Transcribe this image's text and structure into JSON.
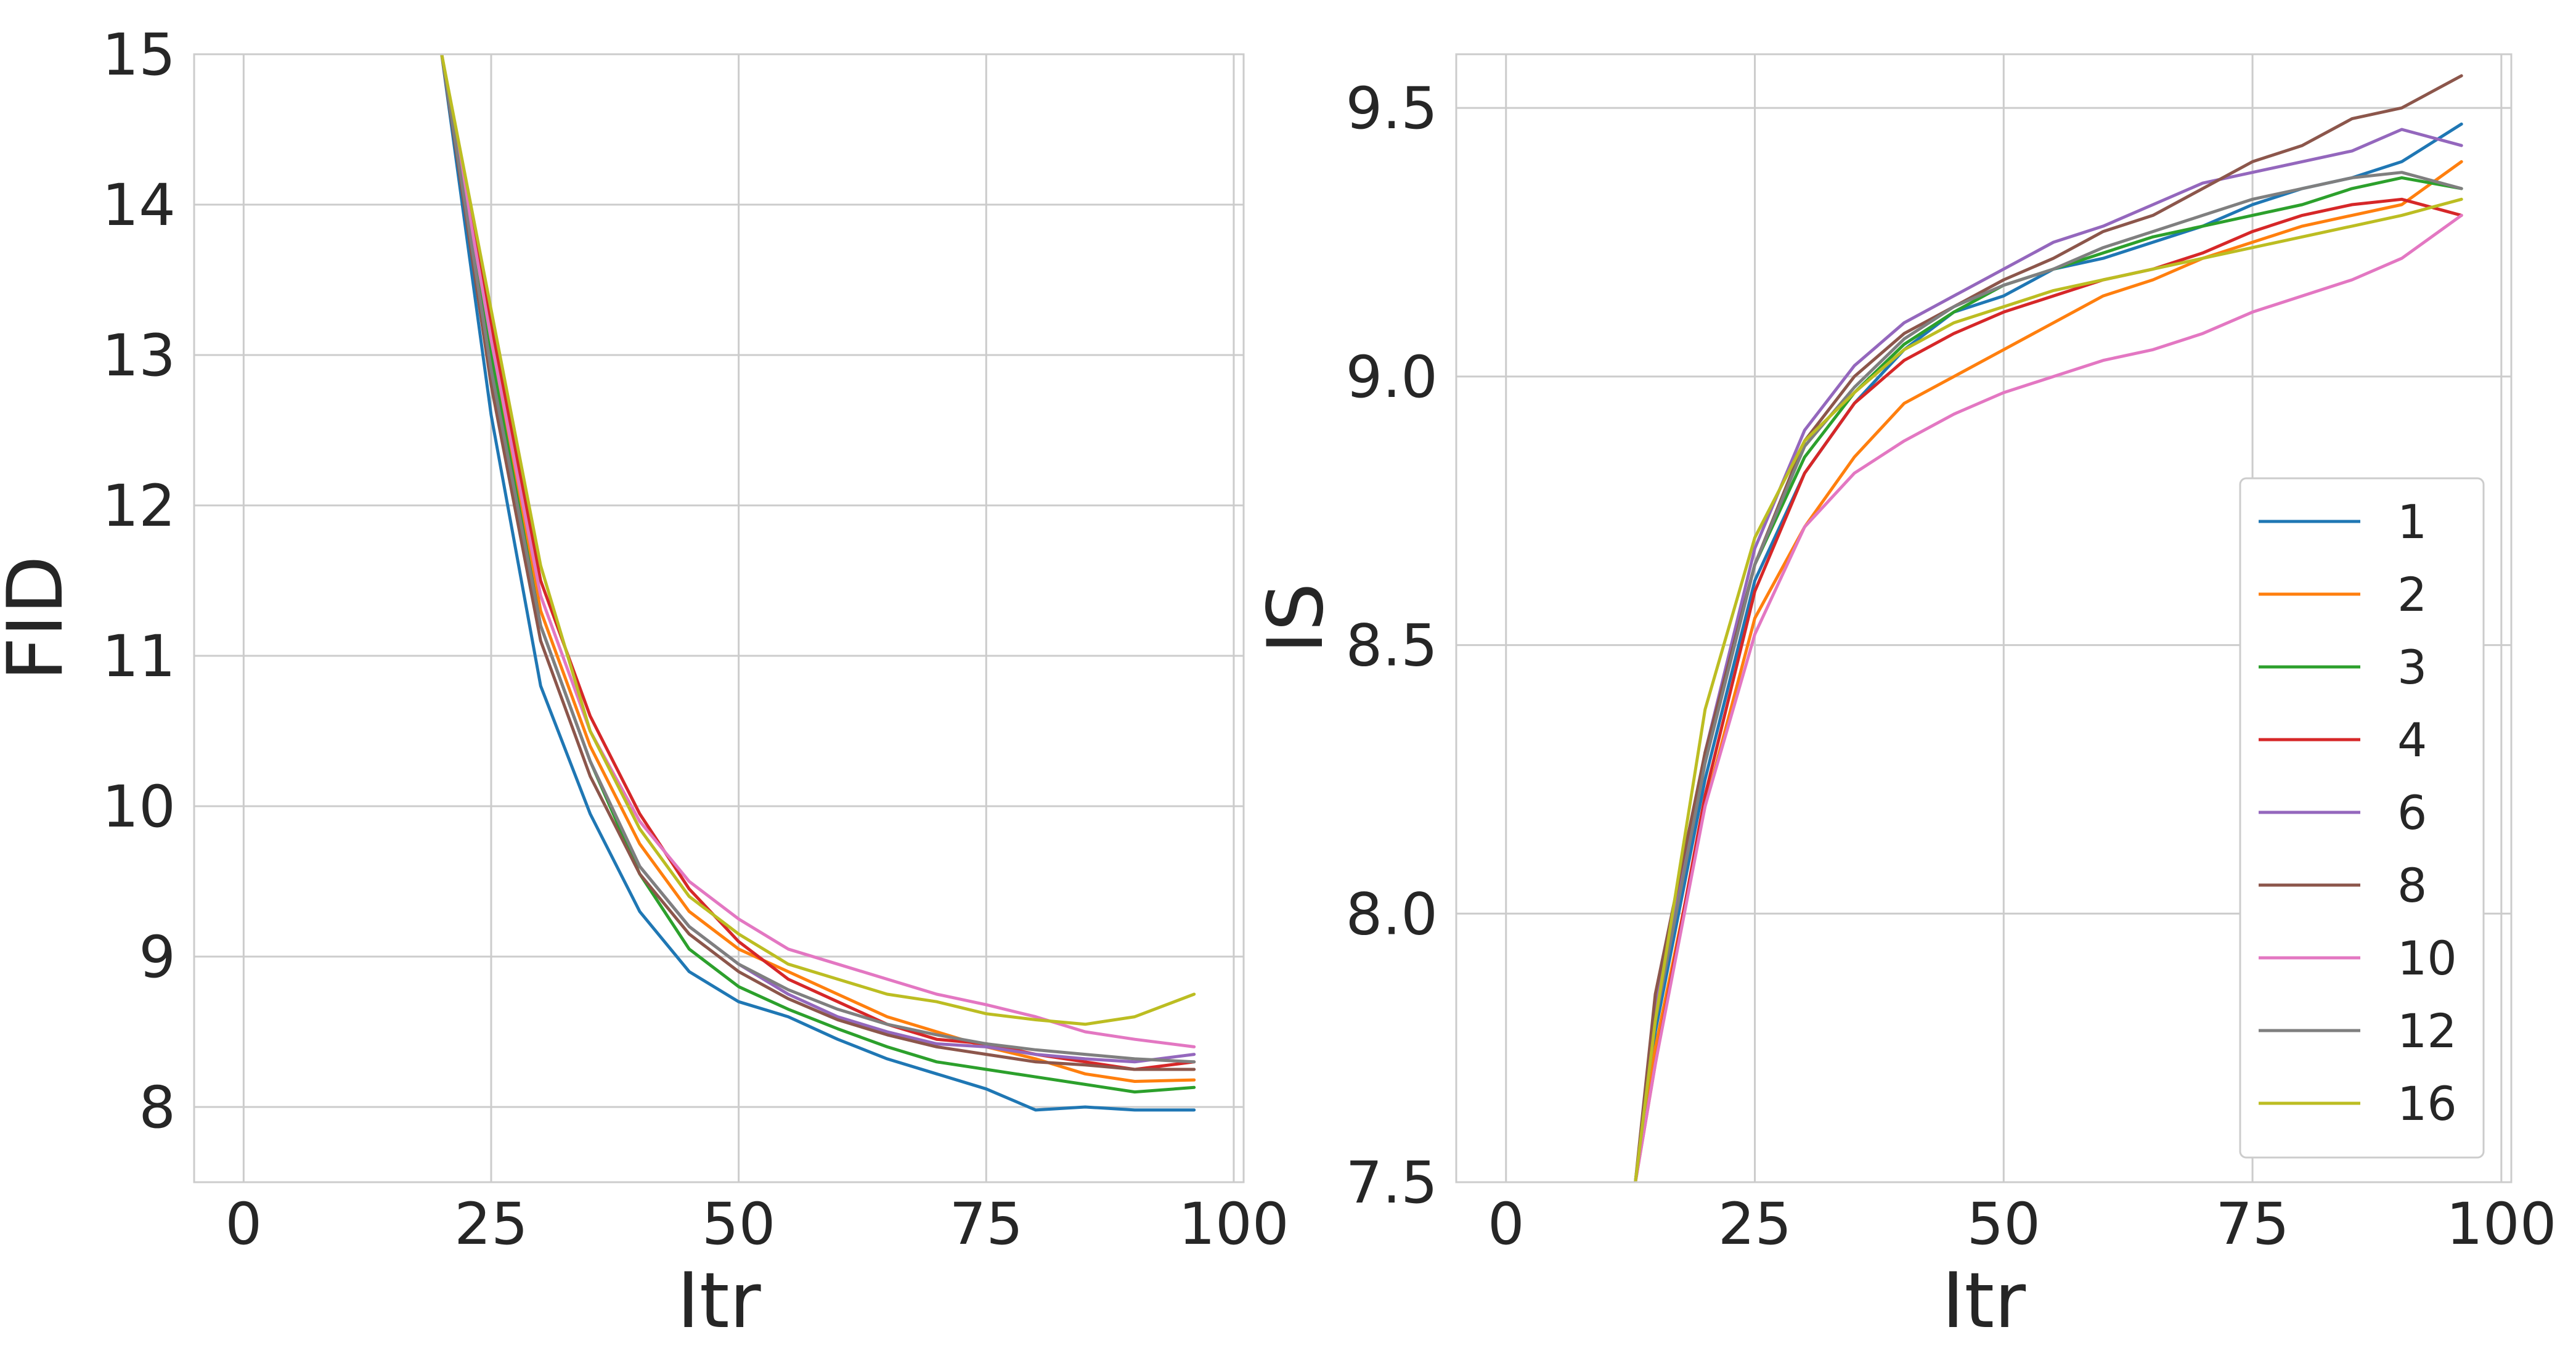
{
  "colors": {
    "background": "#ffffff",
    "grid": "#cccccc",
    "text": "#262626",
    "series": {
      "1": "#1f77b4",
      "2": "#ff7f0e",
      "3": "#2ca02c",
      "4": "#d62728",
      "6": "#9467bd",
      "8": "#8c564b",
      "10": "#e377c2",
      "12": "#7f7f7f",
      "16": "#bcbd22"
    }
  },
  "chart_data": [
    {
      "type": "line",
      "xlabel": "Itr",
      "ylabel": "FID",
      "xlim": [
        -5,
        101
      ],
      "ylim": [
        7.5,
        15
      ],
      "xticks": [
        0,
        25,
        50,
        75,
        100
      ],
      "yticks": [
        8,
        9,
        10,
        11,
        12,
        13,
        14,
        15
      ],
      "grid": true,
      "legend": "none",
      "series": [
        {
          "name": "1",
          "x": [
            20,
            25,
            30,
            35,
            40,
            45,
            50,
            55,
            60,
            65,
            70,
            75,
            80,
            85,
            90,
            96
          ],
          "y": [
            15.0,
            12.6,
            10.8,
            9.95,
            9.3,
            8.9,
            8.7,
            8.6,
            8.45,
            8.32,
            8.22,
            8.12,
            7.98,
            8.0,
            7.98,
            7.98
          ]
        },
        {
          "name": "2",
          "x": [
            20,
            25,
            30,
            35,
            40,
            45,
            50,
            55,
            60,
            65,
            70,
            75,
            80,
            85,
            90,
            96
          ],
          "y": [
            15.0,
            13.1,
            11.3,
            10.4,
            9.75,
            9.3,
            9.05,
            8.9,
            8.75,
            8.6,
            8.5,
            8.4,
            8.32,
            8.22,
            8.17,
            8.18
          ]
        },
        {
          "name": "3",
          "x": [
            20,
            25,
            30,
            35,
            40,
            45,
            50,
            55,
            60,
            65,
            70,
            75,
            80,
            85,
            90,
            96
          ],
          "y": [
            15.0,
            13.0,
            11.2,
            10.3,
            9.55,
            9.05,
            8.8,
            8.65,
            8.52,
            8.4,
            8.3,
            8.25,
            8.2,
            8.15,
            8.1,
            8.13
          ]
        },
        {
          "name": "4",
          "x": [
            20,
            25,
            30,
            35,
            40,
            45,
            50,
            55,
            60,
            65,
            70,
            75,
            80,
            85,
            90,
            96
          ],
          "y": [
            15.0,
            13.2,
            11.5,
            10.6,
            9.95,
            9.45,
            9.1,
            8.85,
            8.7,
            8.55,
            8.45,
            8.42,
            8.35,
            8.3,
            8.25,
            8.3
          ]
        },
        {
          "name": "6",
          "x": [
            20,
            25,
            30,
            35,
            40,
            45,
            50,
            55,
            60,
            65,
            70,
            75,
            80,
            85,
            90,
            96
          ],
          "y": [
            15.0,
            12.9,
            11.2,
            10.3,
            9.6,
            9.2,
            8.95,
            8.75,
            8.6,
            8.5,
            8.42,
            8.4,
            8.35,
            8.32,
            8.3,
            8.35
          ]
        },
        {
          "name": "8",
          "x": [
            20,
            25,
            30,
            35,
            40,
            45,
            50,
            55,
            60,
            65,
            70,
            75,
            80,
            85,
            90,
            96
          ],
          "y": [
            15.0,
            12.8,
            11.1,
            10.2,
            9.55,
            9.15,
            8.9,
            8.72,
            8.58,
            8.48,
            8.4,
            8.35,
            8.3,
            8.28,
            8.25,
            8.25
          ]
        },
        {
          "name": "10",
          "x": [
            20,
            25,
            30,
            35,
            40,
            45,
            50,
            55,
            60,
            65,
            70,
            75,
            80,
            85,
            90,
            96
          ],
          "y": [
            15.0,
            13.1,
            11.4,
            10.5,
            9.9,
            9.5,
            9.25,
            9.05,
            8.95,
            8.85,
            8.75,
            8.68,
            8.6,
            8.5,
            8.45,
            8.4
          ]
        },
        {
          "name": "12",
          "x": [
            20,
            25,
            30,
            35,
            40,
            45,
            50,
            55,
            60,
            65,
            70,
            75,
            80,
            85,
            90,
            96
          ],
          "y": [
            15.0,
            12.9,
            11.2,
            10.3,
            9.6,
            9.2,
            8.95,
            8.78,
            8.65,
            8.55,
            8.48,
            8.42,
            8.38,
            8.35,
            8.32,
            8.3
          ]
        },
        {
          "name": "16",
          "x": [
            20,
            25,
            30,
            35,
            40,
            45,
            50,
            55,
            60,
            65,
            70,
            75,
            80,
            85,
            90,
            96
          ],
          "y": [
            15.0,
            13.3,
            11.6,
            10.5,
            9.85,
            9.4,
            9.15,
            8.95,
            8.85,
            8.75,
            8.7,
            8.62,
            8.58,
            8.55,
            8.6,
            8.75
          ]
        }
      ]
    },
    {
      "type": "line",
      "xlabel": "Itr",
      "ylabel": "IS",
      "xlim": [
        -5,
        101
      ],
      "ylim": [
        7.5,
        9.6
      ],
      "xticks": [
        0,
        25,
        50,
        75,
        100
      ],
      "yticks": [
        7.5,
        8.0,
        8.5,
        9.0,
        9.5
      ],
      "ytick_labels": [
        "7.5",
        "8.0",
        "8.5",
        "9.0",
        "9.5"
      ],
      "grid": true,
      "legend": "lower-right",
      "series": [
        {
          "name": "1",
          "x": [
            13,
            15,
            20,
            25,
            30,
            35,
            40,
            45,
            50,
            55,
            60,
            65,
            70,
            75,
            80,
            85,
            90,
            96
          ],
          "y": [
            7.5,
            7.78,
            8.25,
            8.62,
            8.82,
            8.95,
            9.05,
            9.12,
            9.15,
            9.2,
            9.22,
            9.25,
            9.28,
            9.32,
            9.35,
            9.37,
            9.4,
            9.47
          ]
        },
        {
          "name": "2",
          "x": [
            13,
            15,
            20,
            25,
            30,
            35,
            40,
            45,
            50,
            55,
            60,
            65,
            70,
            75,
            80,
            85,
            90,
            96
          ],
          "y": [
            7.5,
            7.75,
            8.2,
            8.55,
            8.72,
            8.85,
            8.95,
            9.0,
            9.05,
            9.1,
            9.15,
            9.18,
            9.22,
            9.25,
            9.28,
            9.3,
            9.32,
            9.4
          ]
        },
        {
          "name": "3",
          "x": [
            13,
            15,
            20,
            25,
            30,
            35,
            40,
            45,
            50,
            55,
            60,
            65,
            70,
            75,
            80,
            85,
            90,
            96
          ],
          "y": [
            7.5,
            7.8,
            8.3,
            8.65,
            8.85,
            8.97,
            9.06,
            9.12,
            9.17,
            9.2,
            9.23,
            9.26,
            9.28,
            9.3,
            9.32,
            9.35,
            9.37,
            9.35
          ]
        },
        {
          "name": "4",
          "x": [
            13,
            15,
            20,
            25,
            30,
            35,
            40,
            45,
            50,
            55,
            60,
            65,
            70,
            75,
            80,
            85,
            90,
            96
          ],
          "y": [
            7.5,
            7.72,
            8.22,
            8.6,
            8.82,
            8.95,
            9.03,
            9.08,
            9.12,
            9.15,
            9.18,
            9.2,
            9.23,
            9.27,
            9.3,
            9.32,
            9.33,
            9.3
          ]
        },
        {
          "name": "6",
          "x": [
            13,
            15,
            20,
            25,
            30,
            35,
            40,
            45,
            50,
            55,
            60,
            65,
            70,
            75,
            80,
            85,
            90,
            96
          ],
          "y": [
            7.5,
            7.82,
            8.3,
            8.68,
            8.9,
            9.02,
            9.1,
            9.15,
            9.2,
            9.25,
            9.28,
            9.32,
            9.36,
            9.38,
            9.4,
            9.42,
            9.46,
            9.43
          ]
        },
        {
          "name": "8",
          "x": [
            13,
            15,
            20,
            25,
            30,
            35,
            40,
            45,
            50,
            55,
            60,
            65,
            70,
            75,
            80,
            85,
            90,
            96
          ],
          "y": [
            7.5,
            7.85,
            8.3,
            8.65,
            8.88,
            9.0,
            9.08,
            9.13,
            9.18,
            9.22,
            9.27,
            9.3,
            9.35,
            9.4,
            9.43,
            9.48,
            9.5,
            9.56
          ]
        },
        {
          "name": "10",
          "x": [
            13,
            15,
            20,
            25,
            30,
            35,
            40,
            45,
            50,
            55,
            60,
            65,
            70,
            75,
            80,
            85,
            90,
            96
          ],
          "y": [
            7.5,
            7.72,
            8.2,
            8.52,
            8.72,
            8.82,
            8.88,
            8.93,
            8.97,
            9.0,
            9.03,
            9.05,
            9.08,
            9.12,
            9.15,
            9.18,
            9.22,
            9.3
          ]
        },
        {
          "name": "12",
          "x": [
            13,
            15,
            20,
            25,
            30,
            35,
            40,
            45,
            50,
            55,
            60,
            65,
            70,
            75,
            80,
            85,
            90,
            96
          ],
          "y": [
            7.5,
            7.8,
            8.28,
            8.65,
            8.87,
            8.98,
            9.07,
            9.13,
            9.17,
            9.2,
            9.24,
            9.27,
            9.3,
            9.33,
            9.35,
            9.37,
            9.38,
            9.35
          ]
        },
        {
          "name": "16",
          "x": [
            13,
            15,
            20,
            25,
            30,
            35,
            40,
            45,
            50,
            55,
            60,
            65,
            70,
            75,
            80,
            85,
            90,
            96
          ],
          "y": [
            7.5,
            7.8,
            8.38,
            8.7,
            8.88,
            8.97,
            9.05,
            9.1,
            9.13,
            9.16,
            9.18,
            9.2,
            9.22,
            9.24,
            9.26,
            9.28,
            9.3,
            9.33
          ]
        }
      ]
    }
  ]
}
